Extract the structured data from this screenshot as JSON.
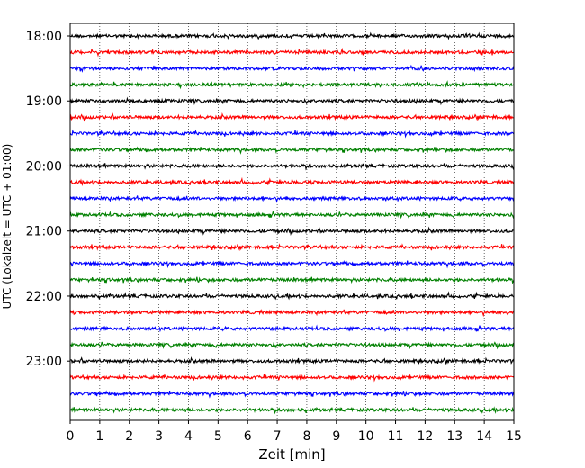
{
  "chart_data": {
    "type": "line",
    "title": "",
    "xlabel": "Zeit  [min]",
    "ylabel": "UTC (Lokalzeit = UTC + 01:00)",
    "xlim": [
      0,
      15
    ],
    "x_ticks": [
      "0",
      "1",
      "2",
      "3",
      "4",
      "5",
      "6",
      "7",
      "8",
      "9",
      "10",
      "11",
      "12",
      "13",
      "14",
      "15"
    ],
    "y_ticks": [
      "18:00",
      "19:00",
      "20:00",
      "21:00",
      "22:00",
      "23:00"
    ],
    "start_time": "18:00",
    "end_time": "24:00",
    "trace_interval_min": 15,
    "trace_count": 24,
    "trace_colors": [
      "#000000",
      "#ff0000",
      "#0000ff",
      "#008000"
    ],
    "grid": {
      "vertical": true,
      "style": "dotted"
    }
  }
}
